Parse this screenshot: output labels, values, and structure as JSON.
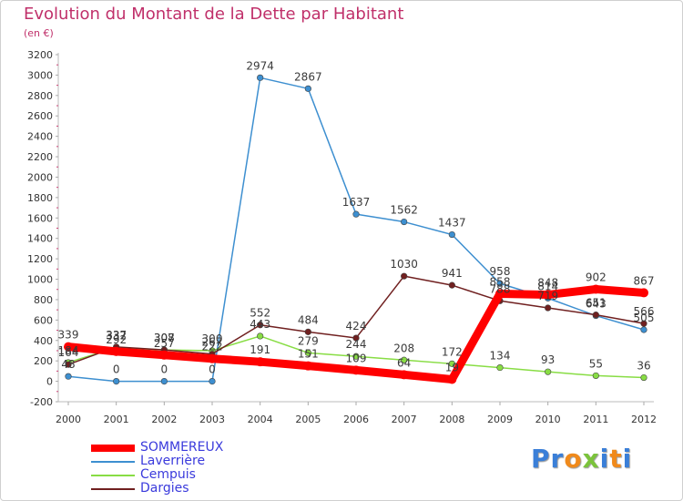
{
  "chart_data": {
    "type": "line",
    "title": "Evolution du Montant de la Dette par Habitant",
    "subtitle": "(en €)",
    "x": [
      "2000",
      "2001",
      "2002",
      "2003",
      "2004",
      "2005",
      "2006",
      "2007",
      "2008",
      "2009",
      "2010",
      "2011",
      "2012"
    ],
    "ylim": [
      -200,
      3200
    ],
    "yticks": [
      -200,
      0,
      200,
      400,
      600,
      800,
      1000,
      1200,
      1400,
      1600,
      1800,
      2000,
      2200,
      2400,
      2600,
      2800,
      3000,
      3200
    ],
    "grid": false,
    "legend_position": "bottom-left",
    "series": [
      {
        "name": "SOMMEREUX",
        "color": "#ff0000",
        "values": [
          339,
          292,
          257,
          222,
          191,
          151,
          109,
          64,
          19,
          858,
          848,
          902,
          867
        ],
        "labels": [
          "339",
          "292",
          "257",
          "222",
          "191",
          "151",
          "109",
          "64",
          "19",
          "858",
          "848",
          "902",
          "867"
        ]
      },
      {
        "name": "Laverrière",
        "color": "#3d8fd0",
        "values": [
          48,
          0,
          0,
          0,
          2974,
          2867,
          1637,
          1562,
          1437,
          958,
          814,
          643,
          505
        ],
        "labels": [
          "48",
          "0",
          "0",
          "0",
          "2974",
          "2867",
          "1637",
          "1562",
          "1437",
          "958",
          "814",
          "643",
          "505"
        ]
      },
      {
        "name": "Cempuis",
        "color": "#88dd44",
        "values": [
          184,
          332,
          307,
          300,
          443,
          279,
          244,
          208,
          172,
          134,
          93,
          55,
          36
        ],
        "labels": [
          "184",
          "332",
          "307",
          "300",
          "443",
          "279",
          "244",
          "208",
          "172",
          "134",
          "93",
          "55",
          "36"
        ]
      },
      {
        "name": "Dargies",
        "color": "#702020",
        "values": [
          164,
          337,
          308,
          267,
          552,
          484,
          424,
          1030,
          941,
          788,
          719,
          651,
          566
        ],
        "labels": [
          "164",
          "337",
          "308",
          "267",
          "552",
          "484",
          "424",
          "1030",
          "941",
          "788",
          "719",
          "651",
          "566"
        ]
      }
    ]
  },
  "logo": {
    "letters": [
      {
        "char": "P",
        "color": "#3a7fd8"
      },
      {
        "char": "r",
        "color": "#3a7fd8"
      },
      {
        "char": "o",
        "color": "#f08a1c"
      },
      {
        "char": "x",
        "color": "#7bc33b"
      },
      {
        "char": "i",
        "color": "#3a7fd8"
      },
      {
        "char": "t",
        "color": "#f08a1c"
      },
      {
        "char": "i",
        "color": "#3a7fd8"
      }
    ]
  }
}
